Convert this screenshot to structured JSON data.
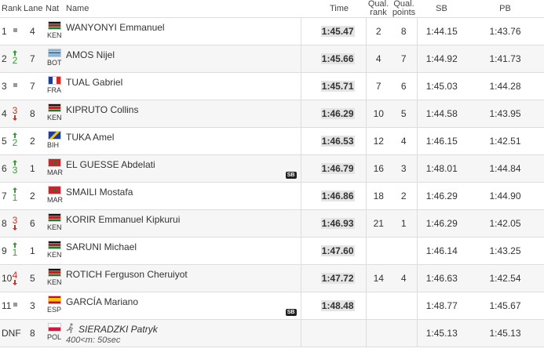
{
  "table": {
    "header": [
      "Rank",
      "Lane",
      "Nat",
      "Name",
      "Time",
      "Qual. rank",
      "Qual. points",
      "SB",
      "PB"
    ],
    "rows": [
      {
        "rank": 1,
        "trend": "same",
        "lane": 4,
        "nat": "KEN",
        "flag": "kenya",
        "name": "WANYONYI Emmanuel",
        "time": "1:45.47",
        "qual_rank": 2,
        "qual_points": 8,
        "sb": "1:44.15",
        "pb": "1:43.76"
      },
      {
        "rank": 2,
        "trend": "up",
        "change": 2,
        "lane": 7,
        "nat": "BOT",
        "flag": "botswana",
        "name": "AMOS Nijel",
        "time": "1:45.66",
        "qual_rank": 4,
        "qual_points": 7,
        "sb": "1:44.92",
        "pb": "1:41.73"
      },
      {
        "rank": 3,
        "trend": "same",
        "lane": 7,
        "nat": "FRA",
        "flag": "france",
        "name": "TUAL Gabriel",
        "time": "1:45.71",
        "qual_rank": 7,
        "qual_points": 6,
        "sb": "1:45.03",
        "pb": "1:44.28"
      },
      {
        "rank": 4,
        "trend": "down",
        "change": 3,
        "lane": 8,
        "nat": "KEN",
        "flag": "kenya",
        "name": "KIPRUTO Collins",
        "time": "1:46.29",
        "qual_rank": 10,
        "qual_points": 5,
        "sb": "1:44.58",
        "pb": "1:43.95"
      },
      {
        "rank": 5,
        "trend": "up",
        "change": 2,
        "lane": 2,
        "nat": "BIH",
        "flag": "bosnia",
        "name": "TUKA Amel",
        "time": "1:46.53",
        "qual_rank": 12,
        "qual_points": 4,
        "sb": "1:46.15",
        "pb": "1:42.51"
      },
      {
        "rank": 6,
        "trend": "up",
        "change": 3,
        "lane": 1,
        "nat": "MAR",
        "flag": "morocco",
        "name": "EL GUESSE Abdelati",
        "badge": "SB",
        "time": "1:46.79",
        "qual_rank": 16,
        "qual_points": 3,
        "sb": "1:48.01",
        "pb": "1:44.84"
      },
      {
        "rank": 7,
        "trend": "up",
        "change": 1,
        "lane": 2,
        "nat": "MAR",
        "flag": "morocco",
        "name": "SMAILI Mostafa",
        "time": "1:46.86",
        "qual_rank": 18,
        "qual_points": 2,
        "sb": "1:46.29",
        "pb": "1:44.90"
      },
      {
        "rank": 8,
        "trend": "down",
        "change": 3,
        "lane": 6,
        "nat": "KEN",
        "flag": "kenya",
        "name": "KORIR Emmanuel Kipkurui",
        "time": "1:46.93",
        "qual_rank": 21,
        "qual_points": 1,
        "sb": "1:46.29",
        "pb": "1:42.05"
      },
      {
        "rank": 9,
        "trend": "up",
        "change": 1,
        "lane": 1,
        "nat": "KEN",
        "flag": "kenya",
        "name": "SARUNI Michael",
        "time": "1:47.60",
        "sb": "1:46.14",
        "pb": "1:43.25"
      },
      {
        "rank": 10,
        "trend": "down",
        "change": 4,
        "lane": 5,
        "nat": "KEN",
        "flag": "kenya",
        "name": "ROTICH Ferguson Cheruiyot",
        "time": "1:47.72",
        "qual_rank": 14,
        "qual_points": 4,
        "sb": "1:46.63",
        "pb": "1:42.54"
      },
      {
        "rank": 11,
        "trend": "same",
        "lane": 3,
        "nat": "ESP",
        "flag": "spain",
        "name": "GARCÍA Mariano",
        "badge": "SB",
        "time": "1:48.48",
        "sb": "1:48.77",
        "pb": "1:45.67"
      },
      {
        "rank": "DNF",
        "lane": 8,
        "nat": "POL",
        "flag": "poland",
        "name": "SIERADZKI Patryk",
        "italic": true,
        "note": "400<m: 50sec",
        "sb": "1:45.13",
        "pb": "1:45.13"
      }
    ]
  }
}
